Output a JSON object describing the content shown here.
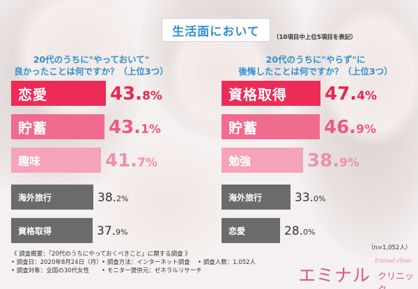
{
  "header": {
    "title": "生活面において",
    "note": "（10項目中上位5項目を表記）"
  },
  "left": {
    "title_line1": "20代のうちに\"やっておいて\"",
    "title_line2": "良かったことは何ですか？（上位3つ）"
  },
  "right": {
    "title_line1": "20代のうちに\"やらず\"に",
    "title_line2": "後悔したことは何ですか？（上位3つ）"
  },
  "chart_data": [
    {
      "type": "bar",
      "title": "20代のうちに\"やっておいて\"良かったことは何ですか？（上位3つ）",
      "categories": [
        "恋愛",
        "貯蓄",
        "趣味",
        "海外旅行",
        "資格取得"
      ],
      "values": [
        43.8,
        43.1,
        41.7,
        38.2,
        37.9
      ],
      "value_whole": [
        "43.",
        "43.",
        "41.",
        "38.",
        "37."
      ],
      "value_frac": [
        "8%",
        "1%",
        "7%",
        "2%",
        "9%"
      ],
      "xlim": [
        0,
        50
      ]
    },
    {
      "type": "bar",
      "title": "20代のうちに\"やらず\"に後悔したことは何ですか？（上位3つ）",
      "categories": [
        "資格取得",
        "貯蓄",
        "勉強",
        "海外旅行",
        "恋愛"
      ],
      "values": [
        47.4,
        46.9,
        38.9,
        33.0,
        28.0
      ],
      "value_whole": [
        "47.",
        "46.",
        "38.",
        "33.",
        "28."
      ],
      "value_frac": [
        "4%",
        "9%",
        "9%",
        "0%",
        "0%"
      ],
      "xlim": [
        0,
        50
      ]
    }
  ],
  "footer": {
    "n": "（n=1,052人）",
    "survey_title": "《 調査概要：「20代のうちにやっておくべきこと」に関する調査 》",
    "date": "• 調査日：2020年8月24日（月）",
    "method": "• 調査方法：インターネット調査",
    "people": "• 調査人数：1,052人",
    "target": "• 調査対象：全国の30代女性",
    "provider": "• モニター提供元：ゼネラルリサーチ"
  },
  "logo": {
    "main": "エミナル",
    "script": "Eminal clinic",
    "sub": "クリニック"
  },
  "colors": {
    "rank1": "#ec2c56",
    "rank2": "#f06b8d",
    "rank3": "#f6a3bc",
    "grey": "#6b6b6b",
    "heading": "#2f8fcf"
  }
}
